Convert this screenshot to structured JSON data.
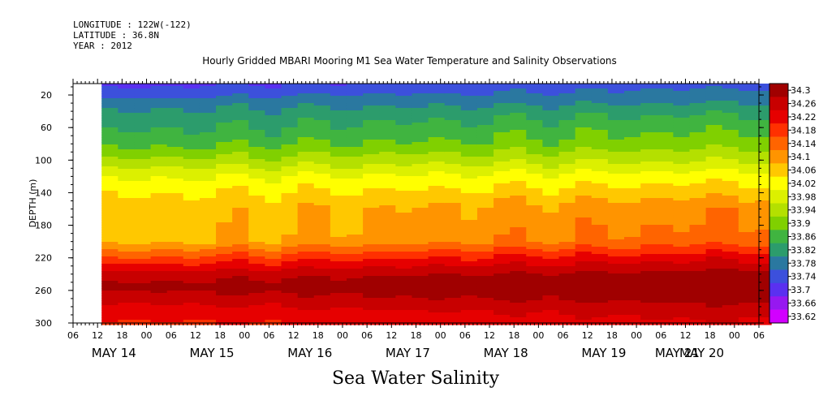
{
  "header": {
    "longitude": "LONGITUDE : 122W(-122)",
    "latitude": "LATITUDE : 36.8N",
    "year": "YEAR : 2012"
  },
  "chart_data": {
    "type": "heatmap",
    "title": "Hourly Gridded MBARI Mooring M1 Sea Water Temperature and Salinity Observations",
    "xlabel": "Sea Water Salinity",
    "ylabel": "DEPTH (m)",
    "y_ticks": [
      20,
      60,
      100,
      140,
      180,
      220,
      260,
      300
    ],
    "ylim": [
      300,
      6
    ],
    "x_hour_ticks": [
      "06",
      "12",
      "18",
      "00",
      "06",
      "12",
      "18",
      "00",
      "06",
      "12",
      "18",
      "00",
      "06",
      "12",
      "18",
      "00",
      "06",
      "12",
      "18",
      "00",
      "06",
      "12",
      "18",
      "00",
      "06",
      "12",
      "18",
      "00",
      "06"
    ],
    "x_date_labels": [
      "MAY 14",
      "MAY 15",
      "MAY 16",
      "MAY 17",
      "MAY 18",
      "MAY 19",
      "MAY 20",
      "MAY 21"
    ],
    "data_start": "MAY 14 13:00",
    "data_end": "MAY 21 07:00",
    "colorbar": {
      "levels": [
        "34.3",
        "34.26",
        "34.22",
        "34.18",
        "34.14",
        "34.1",
        "34.06",
        "34.02",
        "33.98",
        "33.94",
        "33.9",
        "33.86",
        "33.82",
        "33.78",
        "33.74",
        "33.7",
        "33.66",
        "33.62"
      ],
      "colors": [
        "#a00000",
        "#c80000",
        "#e60000",
        "#ff3000",
        "#ff6400",
        "#ff9400",
        "#ffc800",
        "#ffff00",
        "#dcf000",
        "#b4e000",
        "#80d000",
        "#40b440",
        "#2c9c6c",
        "#2a78a0",
        "#3c50dc",
        "#5a30f0",
        "#9618f0",
        "#d200ff"
      ],
      "range": [
        33.62,
        34.3
      ]
    },
    "profile": {
      "depths": [
        6,
        20,
        40,
        60,
        80,
        100,
        120,
        140,
        160,
        180,
        200,
        220,
        240,
        255,
        270,
        285,
        300
      ],
      "salinity_early": [
        33.72,
        33.76,
        33.81,
        33.84,
        33.87,
        33.93,
        33.99,
        34.03,
        34.05,
        34.05,
        34.06,
        34.15,
        34.24,
        34.27,
        34.24,
        34.2,
        34.18
      ],
      "salinity_late": [
        33.76,
        33.79,
        33.84,
        33.88,
        33.91,
        33.96,
        34.02,
        34.06,
        34.11,
        34.12,
        34.14,
        34.22,
        34.28,
        34.31,
        34.28,
        34.25,
        34.22
      ]
    }
  }
}
